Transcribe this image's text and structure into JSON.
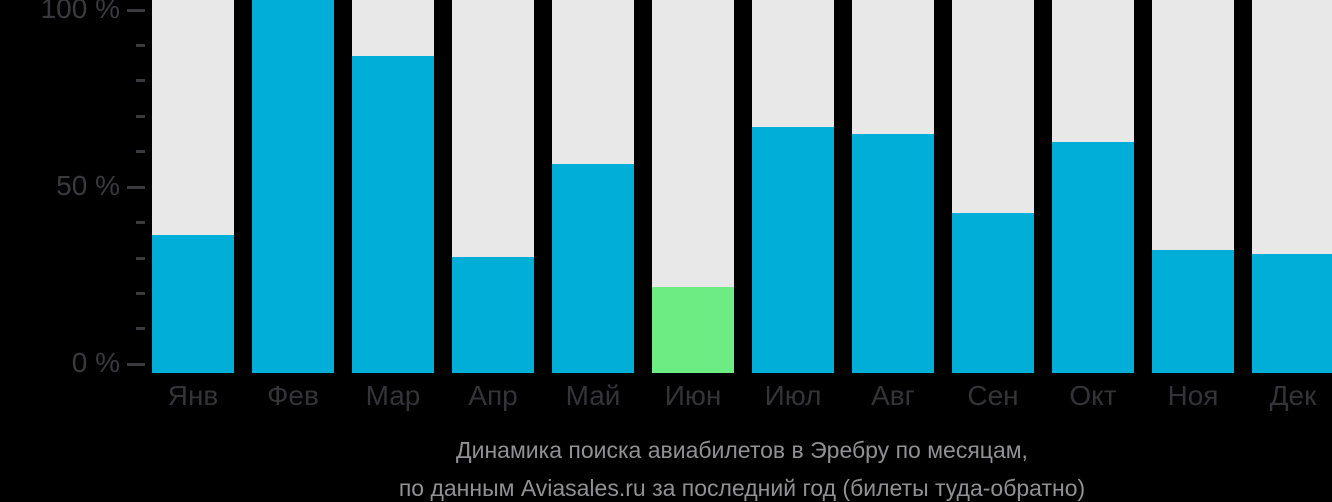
{
  "chart_data": {
    "type": "bar",
    "title": "Динамика поиска авиабилетов в Эребру по месяцам,",
    "subtitle": "по данным Aviasales.ru за последний год (билеты туда-обратно)",
    "categories": [
      "Янв",
      "Фев",
      "Мар",
      "Апр",
      "Май",
      "Июн",
      "Июл",
      "Авг",
      "Сен",
      "Окт",
      "Ноя",
      "Дек"
    ],
    "values": [
      37,
      100,
      85,
      31,
      56,
      23,
      66,
      64,
      43,
      62,
      33,
      32
    ],
    "highlight_index": 5,
    "ylabel": "",
    "xlabel": "",
    "ylim": [
      0,
      100
    ],
    "ytick_labels": {
      "100": "100 %",
      "50": "50 %",
      "0": "0 %"
    },
    "yticks_major": [
      100,
      50,
      0
    ],
    "ytick_minor_step": 10,
    "grid": false,
    "legend": null,
    "colors": {
      "bar": "#00aed8",
      "highlight_bar": "#6dec84",
      "track": "#e8e8e8",
      "axis_text": "#3a3a3e",
      "caption_text": "#919193",
      "background": "#000000"
    }
  }
}
